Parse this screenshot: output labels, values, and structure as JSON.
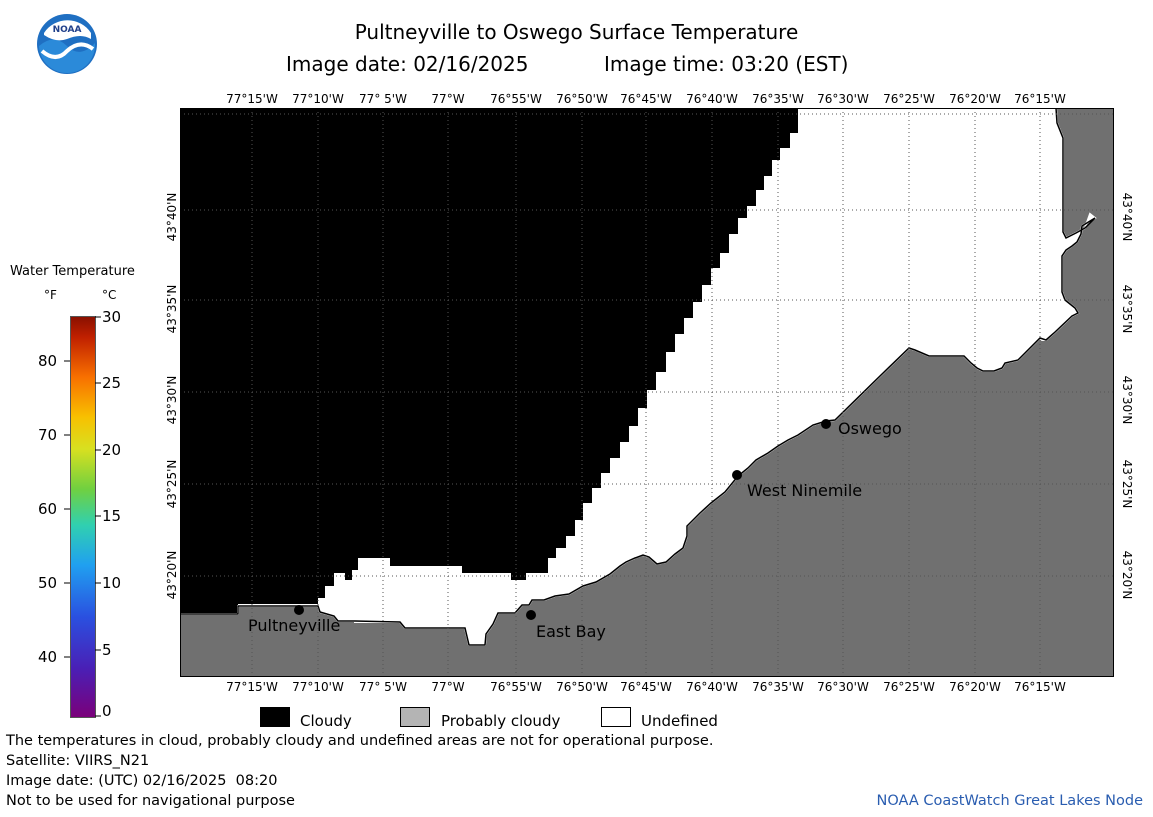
{
  "title": "Pultneyville to Oswego Surface Temperature",
  "image_date_line": "Image date: 02/16/2025",
  "image_time_line": "Image time: 03:20 (EST)",
  "logo_text": "NOAA",
  "colorbar": {
    "title": "Water Temperature",
    "unit_f": "°F",
    "unit_c": "°C",
    "f_ticks": [
      "80",
      "70",
      "60",
      "50",
      "40"
    ],
    "c_ticks": [
      "30",
      "25",
      "20",
      "15",
      "10",
      "5",
      "0"
    ]
  },
  "longitude_labels": [
    "77°15'W",
    "77°10'W",
    "77° 5'W",
    "77°W",
    "76°55'W",
    "76°50'W",
    "76°45'W",
    "76°40'W",
    "76°35'W",
    "76°30'W",
    "76°25'W",
    "76°20'W",
    "76°15'W"
  ],
  "latitude_labels": [
    "43°40'N",
    "43°35'N",
    "43°30'N",
    "43°25'N",
    "43°20'N"
  ],
  "places": [
    {
      "name": "Pultneyville"
    },
    {
      "name": "East Bay"
    },
    {
      "name": "West Ninemile"
    },
    {
      "name": "Oswego"
    }
  ],
  "legend": {
    "cloudy": "Cloudy",
    "probably_cloudy": "Probably cloudy",
    "undefined": "Undefined",
    "colors": {
      "cloudy": "#000000",
      "probably_cloudy": "#b4b4b4",
      "undefined": "#ffffff",
      "land": "#707070"
    }
  },
  "footer": {
    "note": "The temperatures in cloud, probably cloudy and undefined areas are not for operational purpose.",
    "satellite": "Satellite: VIIRS_N21",
    "utc_date": "Image date: (UTC) 02/16/2025  08:20",
    "nav_warning": "Not to be used for navigational purpose",
    "credit": "NOAA CoastWatch Great Lakes Node"
  }
}
